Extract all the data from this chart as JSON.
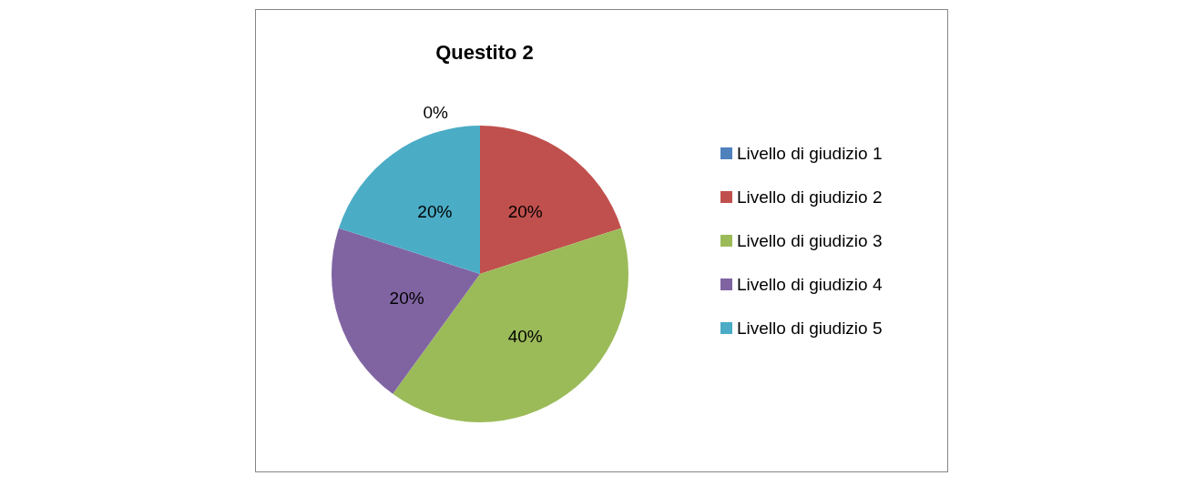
{
  "chart_data": {
    "type": "pie",
    "title": "Questito 2",
    "categories": [
      "Livello di giudizio 1",
      "Livello di giudizio 2",
      "Livello di giudizio 3",
      "Livello di giudizio 4",
      "Livello di giudizio 5"
    ],
    "values": [
      0,
      20,
      40,
      20,
      20
    ],
    "colors": [
      "#4f81bd",
      "#c0504d",
      "#9bbb59",
      "#8064a2",
      "#4bacc6"
    ],
    "value_labels": [
      "0%",
      "20%",
      "40%",
      "20%",
      "20%"
    ],
    "legend": "right"
  }
}
